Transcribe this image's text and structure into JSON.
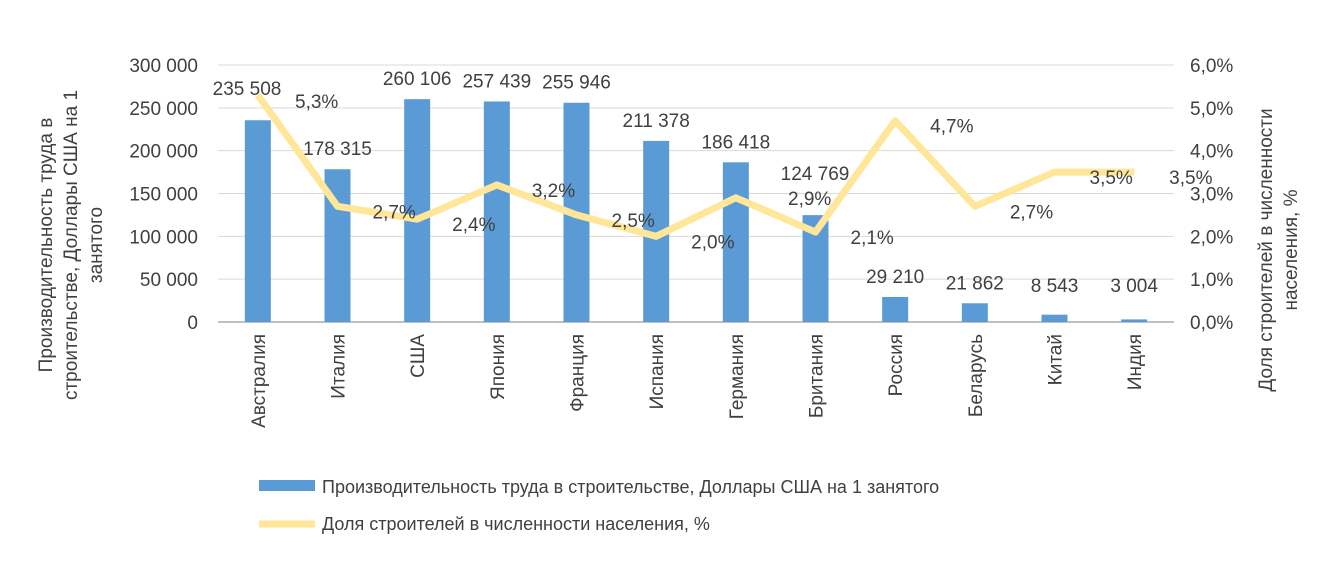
{
  "chart_data": {
    "type": "bar+line",
    "categories": [
      "Австралия",
      "Италия",
      "США",
      "Япония",
      "Франция",
      "Испания",
      "Германия",
      "Британия",
      "Россия",
      "Беларусь",
      "Китай",
      "Индия"
    ],
    "series": [
      {
        "name": "Производительность труда в строительстве, Доллары США на 1 занятого",
        "type": "bar",
        "axis": "left",
        "color": "#5B9BD5",
        "values": [
          235508,
          178315,
          260106,
          257439,
          255946,
          211378,
          186418,
          124769,
          29210,
          21862,
          8543,
          3004
        ],
        "labels": [
          "235 508",
          "178 315",
          "260 106",
          "257 439",
          "255 946",
          "211 378",
          "186 418",
          "124 769",
          "29 210",
          "21 862",
          "8 543",
          "3 004"
        ]
      },
      {
        "name": "Доля строителей в численности населения, %",
        "type": "line",
        "axis": "right",
        "color": "#FFE699",
        "values": [
          5.3,
          2.7,
          2.4,
          3.2,
          2.5,
          2.0,
          2.9,
          2.1,
          4.7,
          2.7,
          3.5,
          3.5
        ],
        "labels": [
          "5,3%",
          "2,7%",
          "2,4%",
          "3,2%",
          "2,5%",
          "2,0%",
          "2,9%",
          "2,1%",
          "4,7%",
          "2,7%",
          "3,5%",
          "3,5%"
        ]
      }
    ],
    "ylim": [
      0,
      300000
    ],
    "y2lim": [
      0,
      6
    ],
    "yticks": [
      "0",
      "50 000",
      "100 000",
      "150 000",
      "200 000",
      "250 000",
      "300 000"
    ],
    "y2ticks": [
      "0,0%",
      "1,0%",
      "2,0%",
      "3,0%",
      "4,0%",
      "5,0%",
      "6,0%"
    ],
    "ylabel_lines": [
      "Производительность труда в",
      "строительстве, Доллары США на 1",
      "занятого"
    ],
    "y2label_lines": [
      "Доля строителей в численности",
      "населения, %"
    ],
    "grid": true,
    "legend_position": "bottom"
  }
}
